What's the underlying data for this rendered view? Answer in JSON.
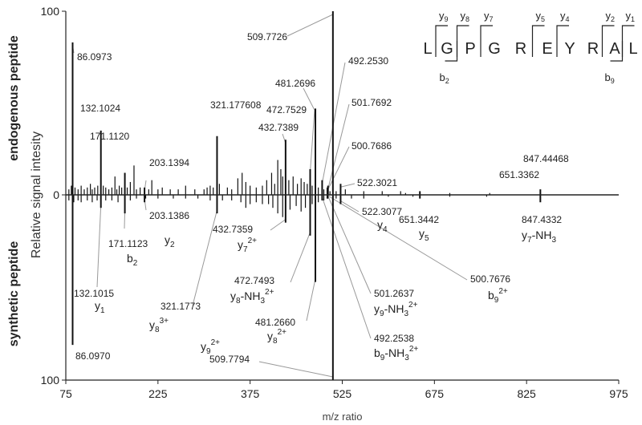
{
  "chart_data": {
    "type": "bar",
    "subtype": "mirror-spectrum",
    "xlabel": "m/z ratio",
    "ylabel": "Relative signal intesity",
    "xlim": [
      75,
      975
    ],
    "xticks": [
      "75",
      "225",
      "375",
      "525",
      "675",
      "825",
      "975"
    ],
    "yticks": [
      "100",
      "0",
      "100"
    ],
    "top_label": "endogenous peptide",
    "bottom_label": "synthetic peptide",
    "top_color": "#111111",
    "bottom_color": "#111111",
    "leader_color": "#999999",
    "top_series": {
      "name": "endogenous peptide",
      "labeled_peaks": [
        {
          "mz": 86.0973,
          "label": "86.0973",
          "intensity": 83
        },
        {
          "mz": 132.1024,
          "label": "132.1024",
          "intensity": 35
        },
        {
          "mz": 171.112,
          "label": "171.1120",
          "intensity": 12
        },
        {
          "mz": 203.1394,
          "label": "203.1394",
          "intensity": 4
        },
        {
          "mz": 321.177608,
          "label": "321.177608",
          "intensity": 32
        },
        {
          "mz": 432.7389,
          "label": "432.7389",
          "intensity": 30
        },
        {
          "mz": 472.7529,
          "label": "472.7529",
          "intensity": 14
        },
        {
          "mz": 481.2696,
          "label": "481.2696",
          "intensity": 47
        },
        {
          "mz": 492.253,
          "label": "492.2530",
          "intensity": 8
        },
        {
          "mz": 500.7686,
          "label": "500.7686",
          "intensity": 4
        },
        {
          "mz": 501.7692,
          "label": "501.7692",
          "intensity": 5
        },
        {
          "mz": 509.7726,
          "label": "509.7726",
          "intensity": 100
        },
        {
          "mz": 522.3021,
          "label": "522.3021",
          "intensity": 6
        },
        {
          "mz": 651.3362,
          "label": "651.3362",
          "intensity": 2
        },
        {
          "mz": 847.44468,
          "label": "847.44468",
          "intensity": 3
        }
      ],
      "minor_peaks": [
        [
          80,
          3
        ],
        [
          84,
          5
        ],
        [
          90,
          4
        ],
        [
          95,
          3
        ],
        [
          100,
          5
        ],
        [
          105,
          3
        ],
        [
          110,
          4
        ],
        [
          115,
          6
        ],
        [
          118,
          3
        ],
        [
          122,
          4
        ],
        [
          127,
          5
        ],
        [
          136,
          5
        ],
        [
          140,
          4
        ],
        [
          145,
          3
        ],
        [
          150,
          4
        ],
        [
          155,
          10
        ],
        [
          158,
          3
        ],
        [
          162,
          5
        ],
        [
          166,
          4
        ],
        [
          175,
          4
        ],
        [
          180,
          7
        ],
        [
          186,
          16
        ],
        [
          190,
          3
        ],
        [
          196,
          4
        ],
        [
          210,
          3
        ],
        [
          215,
          8
        ],
        [
          225,
          3
        ],
        [
          232,
          4
        ],
        [
          245,
          3
        ],
        [
          258,
          3
        ],
        [
          270,
          5
        ],
        [
          285,
          3
        ],
        [
          300,
          3
        ],
        [
          305,
          4
        ],
        [
          310,
          5
        ],
        [
          315,
          4
        ],
        [
          325,
          6
        ],
        [
          338,
          4
        ],
        [
          345,
          3
        ],
        [
          355,
          9
        ],
        [
          362,
          12
        ],
        [
          368,
          7
        ],
        [
          375,
          5
        ],
        [
          385,
          4
        ],
        [
          395,
          5
        ],
        [
          402,
          8
        ],
        [
          410,
          12
        ],
        [
          415,
          6
        ],
        [
          420,
          19
        ],
        [
          425,
          14
        ],
        [
          428,
          10
        ],
        [
          438,
          8
        ],
        [
          445,
          10
        ],
        [
          452,
          6
        ],
        [
          458,
          9
        ],
        [
          463,
          7
        ],
        [
          468,
          6
        ],
        [
          476,
          5
        ],
        [
          486,
          4
        ],
        [
          495,
          3
        ],
        [
          505,
          2
        ],
        [
          515,
          2
        ],
        [
          530,
          3
        ],
        [
          560,
          2
        ],
        [
          590,
          2
        ],
        [
          620,
          2
        ],
        [
          628,
          1
        ],
        [
          700,
          1
        ],
        [
          765,
          1
        ]
      ]
    },
    "bottom_series": {
      "name": "synthetic peptide",
      "labeled_peaks": [
        {
          "mz": 86.097,
          "label": "86.0970",
          "intensity": 81,
          "ion": "y1_none"
        },
        {
          "mz": 132.1015,
          "label": "132.1015",
          "intensity": 7,
          "ion": "y1"
        },
        {
          "mz": 171.1123,
          "label": "171.1123",
          "intensity": 10,
          "ion": "b2"
        },
        {
          "mz": 203.1386,
          "label": "203.1386",
          "intensity": 4,
          "ion": "y2"
        },
        {
          "mz": 321.1773,
          "label": "321.1773",
          "intensity": 10,
          "ion": "y8_3+"
        },
        {
          "mz": 432.7359,
          "label": "432.7359",
          "intensity": 15,
          "ion": "y7_2+"
        },
        {
          "mz": 472.7493,
          "label": "472.7493",
          "intensity": 22,
          "ion": "y8-NH3_2+"
        },
        {
          "mz": 481.266,
          "label": "481.2660",
          "intensity": 47,
          "ion": "y8_2+"
        },
        {
          "mz": 492.2538,
          "label": "492.2538",
          "intensity": 3,
          "ion": "b9-NH3_2+"
        },
        {
          "mz": 500.7676,
          "label": "500.7676",
          "intensity": 2,
          "ion": "b9_2+"
        },
        {
          "mz": 501.2637,
          "label": "501.2637",
          "intensity": 2,
          "ion": "y9-NH3_2+"
        },
        {
          "mz": 509.7794,
          "label": "509.7794",
          "intensity": 100,
          "ion": "y9_2+"
        },
        {
          "mz": 522.3077,
          "label": "522.3077",
          "intensity": 5,
          "ion": "y4"
        },
        {
          "mz": 651.3442,
          "label": "651.3442",
          "intensity": 2,
          "ion": "y5"
        },
        {
          "mz": 847.4332,
          "label": "847.4332",
          "intensity": 4,
          "ion": "y7-NH3"
        }
      ],
      "minor_peaks": [
        [
          80,
          3
        ],
        [
          88,
          4
        ],
        [
          95,
          3
        ],
        [
          100,
          4
        ],
        [
          110,
          3
        ],
        [
          118,
          4
        ],
        [
          126,
          3
        ],
        [
          140,
          3
        ],
        [
          150,
          3
        ],
        [
          160,
          4
        ],
        [
          180,
          3
        ],
        [
          190,
          2
        ],
        [
          205,
          2
        ],
        [
          225,
          2
        ],
        [
          250,
          2
        ],
        [
          270,
          2
        ],
        [
          290,
          2
        ],
        [
          310,
          3
        ],
        [
          330,
          3
        ],
        [
          345,
          3
        ],
        [
          360,
          4
        ],
        [
          368,
          7
        ],
        [
          375,
          5
        ],
        [
          385,
          4
        ],
        [
          395,
          5
        ],
        [
          405,
          5
        ],
        [
          412,
          7
        ],
        [
          420,
          10
        ],
        [
          428,
          12
        ],
        [
          440,
          8
        ],
        [
          450,
          6
        ],
        [
          458,
          9
        ],
        [
          465,
          7
        ],
        [
          476,
          5
        ],
        [
          486,
          4
        ],
        [
          495,
          3
        ],
        [
          515,
          2
        ],
        [
          540,
          2
        ],
        [
          560,
          2
        ],
        [
          600,
          1
        ],
        [
          640,
          1
        ],
        [
          700,
          1
        ],
        [
          760,
          1
        ]
      ]
    },
    "ion_labels": {
      "y1": {
        "base": "y",
        "sub": "1",
        "sup": "",
        "tail": ""
      },
      "b2": {
        "base": "b",
        "sub": "2",
        "sup": "",
        "tail": ""
      },
      "y2": {
        "base": "y",
        "sub": "2",
        "sup": "",
        "tail": ""
      },
      "y8_3+": {
        "base": "y",
        "sub": "8",
        "sup": "3+",
        "tail": ""
      },
      "y7_2+": {
        "base": "y",
        "sub": "7",
        "sup": "2+",
        "tail": ""
      },
      "y8-NH3_2+": {
        "base": "y",
        "sub": "8",
        "sup": "",
        "tail": "-NH",
        "tail_sub": "3",
        "tail_sup": "2+"
      },
      "y8_2+": {
        "base": "y",
        "sub": "8",
        "sup": "2+",
        "tail": ""
      },
      "b9-NH3_2+": {
        "base": "b",
        "sub": "9",
        "sup": "",
        "tail": "-NH",
        "tail_sub": "3",
        "tail_sup": "2+"
      },
      "b9_2+": {
        "base": "b",
        "sub": "9",
        "sup": "2+",
        "tail": ""
      },
      "y9-NH3_2+": {
        "base": "y",
        "sub": "9",
        "sup": "",
        "tail": "-NH",
        "tail_sub": "3",
        "tail_sup": "2+"
      },
      "y9_2+": {
        "base": "y",
        "sub": "9",
        "sup": "2+",
        "tail": ""
      },
      "y4": {
        "base": "y",
        "sub": "4",
        "sup": "",
        "tail": ""
      },
      "y5": {
        "base": "y",
        "sub": "5",
        "sup": "",
        "tail": ""
      },
      "y7-NH3": {
        "base": "y",
        "sub": "7",
        "sup": "",
        "tail": "-NH",
        "tail_sub": "3",
        "tail_sup": ""
      }
    },
    "sequence": {
      "residues": [
        "L",
        "G",
        "P",
        "G",
        "R",
        "E",
        "Y",
        "R",
        "A",
        "L"
      ],
      "y_ions": [
        {
          "after_residue": 0,
          "label": "y",
          "sub": "9"
        },
        {
          "after_residue": 1,
          "label": "y",
          "sub": "8"
        },
        {
          "after_residue": 2,
          "label": "y",
          "sub": "7"
        },
        {
          "after_residue": 4,
          "label": "y",
          "sub": "5"
        },
        {
          "after_residue": 5,
          "label": "y",
          "sub": "4"
        },
        {
          "after_residue": 7,
          "label": "y",
          "sub": "2"
        },
        {
          "after_residue": 8,
          "label": "y",
          "sub": "1"
        }
      ],
      "b_ions": [
        {
          "after_residue": 1,
          "label": "b",
          "sub": "2"
        },
        {
          "after_residue": 8,
          "label": "b",
          "sub": "9"
        }
      ]
    }
  }
}
